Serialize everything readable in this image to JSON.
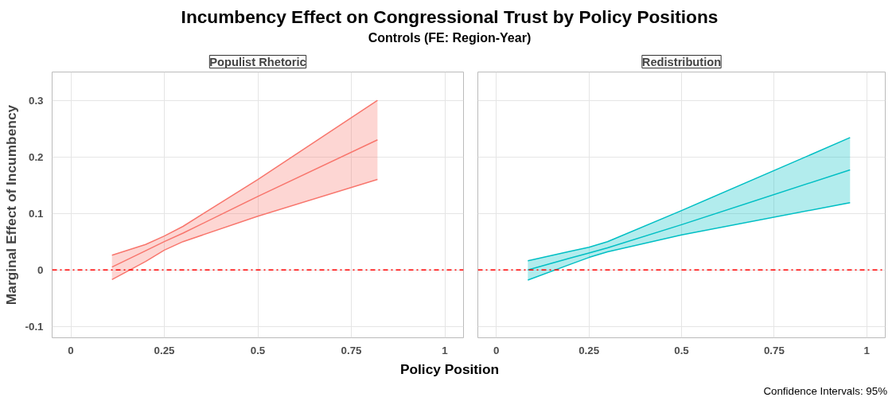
{
  "chart_data": [
    {
      "type": "line",
      "title": "Populist Rhetoric",
      "xlabel": "Policy Position",
      "ylabel": "Marginal Effect of Incumbency",
      "annotations": [
        "Incumbency Effect on Congressional Trust by Policy Positions",
        "Controls (FE: Region-Year)",
        "Confidence Intervals: 95%"
      ],
      "series": [
        {
          "color": "#f8766d",
          "x": [
            0.11,
            0.2,
            0.25,
            0.3,
            0.5,
            0.82
          ],
          "values": [
            0.005,
            0.034,
            0.05,
            0.065,
            0.13,
            0.23
          ],
          "lower": [
            -0.017,
            0.015,
            0.035,
            0.05,
            0.095,
            0.16
          ],
          "upper": [
            0.026,
            0.045,
            0.06,
            0.077,
            0.16,
            0.3
          ]
        },
        {
          "color": "#f8766d",
          "x": [
            0.11,
            0.2,
            0.25,
            0.3,
            0.5,
            0.82
          ],
          "values": [
            -0.017,
            0.015,
            0.035,
            0.05,
            0.095,
            0.16
          ]
        },
        {
          "color": "#f8766d",
          "x": [
            0.11,
            0.2,
            0.25,
            0.3,
            0.5,
            0.82
          ],
          "values": [
            0.026,
            0.045,
            0.06,
            0.077,
            0.16,
            0.3
          ]
        }
      ],
      "xlim": [
        -0.05,
        1.05
      ],
      "ylim": [
        -0.12,
        0.35
      ],
      "xticks": [
        0,
        0.25,
        0.5,
        0.75,
        1
      ],
      "yticks": [
        -0.1,
        0,
        0.1,
        0.2,
        0.3
      ],
      "grid": true,
      "ref_lines": [
        {
          "axis": "y",
          "value": 0,
          "color": "#ff0000",
          "line_style": "dashdot"
        }
      ]
    },
    {
      "type": "line",
      "title": "Redistribution",
      "series": [
        {
          "color": "#00bfc4",
          "x": [
            0.085,
            0.2,
            0.25,
            0.3,
            0.5,
            0.955
          ],
          "values": [
            0.0,
            0.021,
            0.03,
            0.039,
            0.08,
            0.177
          ],
          "lower": [
            -0.018,
            0.01,
            0.022,
            0.032,
            0.062,
            0.119
          ],
          "upper": [
            0.016,
            0.033,
            0.04,
            0.05,
            0.105,
            0.234
          ]
        },
        {
          "color": "#00bfc4",
          "x": [
            0.085,
            0.2,
            0.25,
            0.3,
            0.5,
            0.955
          ],
          "values": [
            -0.018,
            0.01,
            0.022,
            0.032,
            0.062,
            0.119
          ]
        },
        {
          "color": "#00bfc4",
          "x": [
            0.085,
            0.2,
            0.25,
            0.3,
            0.5,
            0.955
          ],
          "values": [
            0.016,
            0.033,
            0.04,
            0.05,
            0.105,
            0.234
          ]
        }
      ],
      "xlim": [
        -0.05,
        1.05
      ],
      "ylim": [
        -0.12,
        0.35
      ],
      "xticks": [
        0,
        0.25,
        0.5,
        0.75,
        1
      ],
      "yticks": [
        -0.1,
        0,
        0.1,
        0.2,
        0.3
      ],
      "grid": true,
      "tick_labels": "x",
      "ref_lines": [
        {
          "axis": "y",
          "value": 0,
          "color": "#ff0000",
          "line_style": "dashdot"
        }
      ]
    }
  ]
}
